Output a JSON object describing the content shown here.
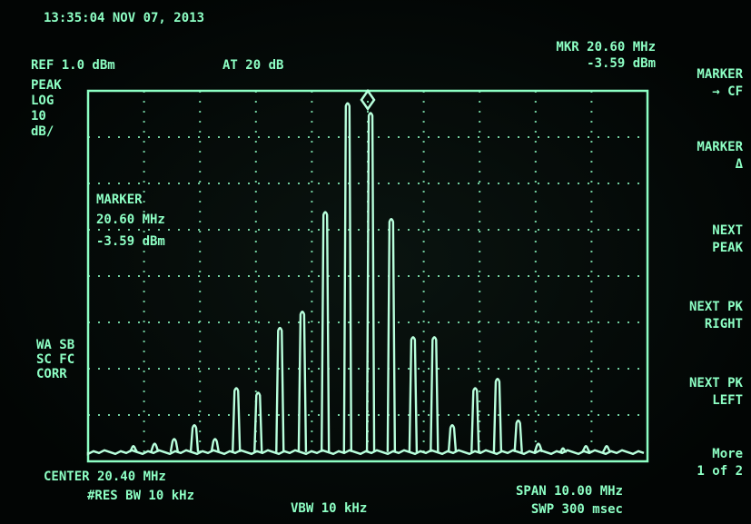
{
  "header": {
    "timestamp": "13:35:04 NOV 07, 2013",
    "reference": "REF 1.0 dBm",
    "attenuation": "AT 20 dB",
    "marker_frequency": "MKR 20.60 MHz",
    "marker_level": "-3.59 dBm"
  },
  "left_labels": [
    "PEAK",
    "LOG",
    "10",
    "dB/"
  ],
  "left_status": [
    "WA SB",
    "SC FC",
    "CORR"
  ],
  "marker_box": [
    "MARKER",
    "20.60 MHz",
    "-3.59 dBm"
  ],
  "softkeys": [
    [
      "MARKER",
      "→ CF"
    ],
    [
      "MARKER",
      "Δ"
    ],
    [
      "NEXT",
      "PEAK"
    ],
    [
      "NEXT PK",
      "RIGHT"
    ],
    [
      "NEXT PK",
      "LEFT"
    ],
    [
      "More",
      "1 of 2"
    ]
  ],
  "footer": {
    "center": "CENTER 20.40 MHz",
    "res_bw": "#RES BW 10 kHz",
    "vbw": "VBW 10 kHz",
    "span": "SPAN 10.00 MHz",
    "sweep": "SWP 300 msec"
  },
  "trace": {
    "xlim": [
      15.4,
      25.4
    ],
    "ylim": [
      -79,
      1
    ],
    "floor_dbm": -77,
    "frequency_mhz": [
      16.21,
      16.59,
      16.94,
      17.3,
      17.67,
      18.05,
      18.44,
      18.83,
      19.23,
      19.64,
      20.04,
      20.45,
      20.82,
      21.21,
      21.59,
      21.91,
      22.32,
      22.72,
      23.09,
      23.45,
      23.89,
      24.3,
      24.67
    ],
    "level_dbm": [
      -75.5,
      -75,
      -74,
      -71,
      -74,
      -63,
      -64,
      -50,
      -46.5,
      -25,
      -1.5,
      -3.59,
      -26.5,
      -52,
      -52,
      -71,
      -63,
      -61,
      -70,
      -75,
      -76,
      -75.5,
      -75.5
    ]
  }
}
